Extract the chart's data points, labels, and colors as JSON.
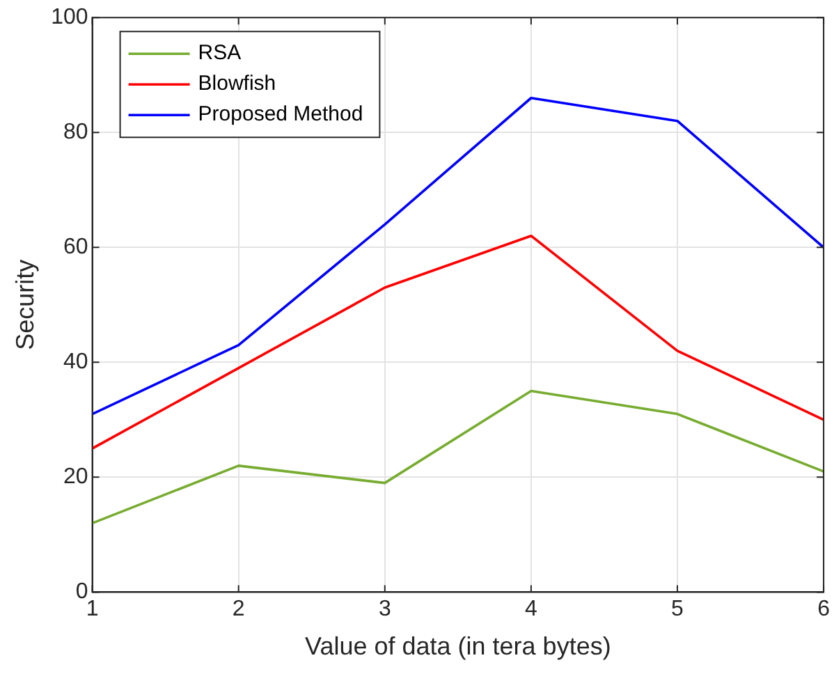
{
  "chart_data": {
    "type": "line",
    "xlabel": "Value of data (in tera bytes)",
    "ylabel": "Security",
    "x": [
      1,
      2,
      3,
      4,
      5,
      6
    ],
    "series": [
      {
        "name": "RSA",
        "color": "#77ac30",
        "values": [
          12,
          22,
          19,
          35,
          31,
          21
        ]
      },
      {
        "name": "Blowfish",
        "color": "#ff0000",
        "values": [
          25,
          39,
          53,
          62,
          42,
          30
        ]
      },
      {
        "name": "Proposed Method",
        "color": "#0000ff",
        "values": [
          31,
          43,
          64,
          86,
          82,
          60
        ]
      }
    ],
    "xlim": [
      1,
      6
    ],
    "xticks": [
      1,
      2,
      3,
      4,
      5,
      6
    ],
    "ylim": [
      0,
      100
    ],
    "yticks": [
      0,
      20,
      40,
      60,
      80,
      100
    ],
    "grid": true,
    "legend": "top left",
    "marker": "none",
    "line_style": "solid"
  }
}
